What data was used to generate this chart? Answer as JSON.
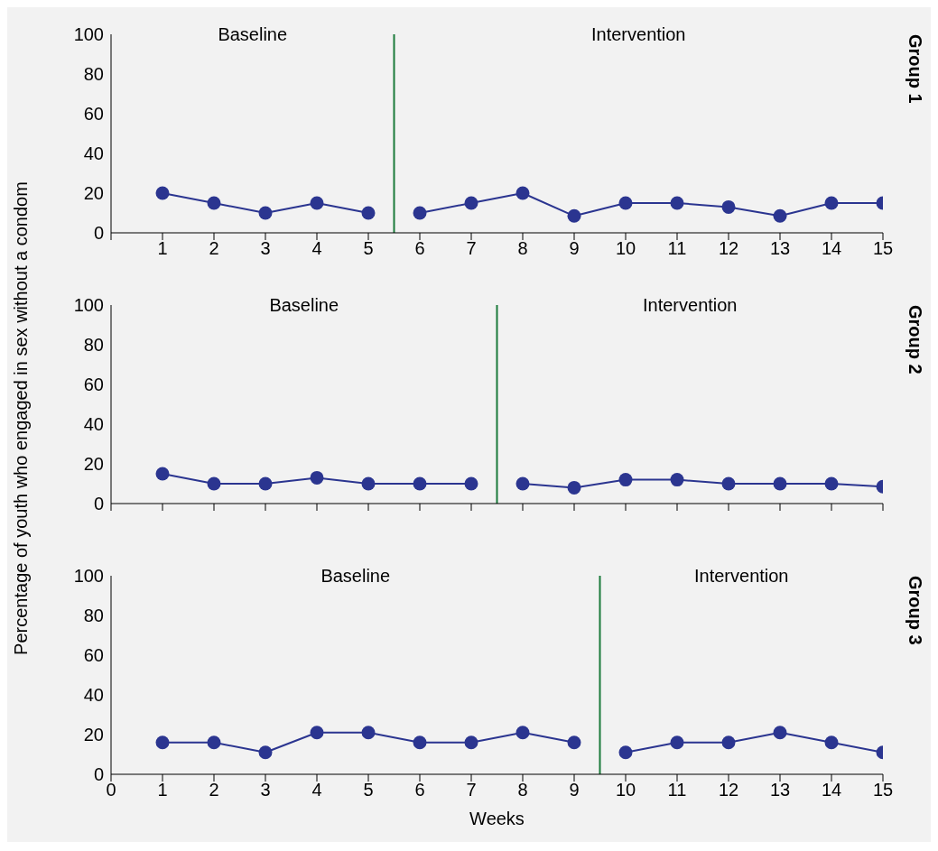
{
  "chart_data": [
    {
      "type": "line",
      "y2label": "Group 1",
      "annotations": [
        "Baseline",
        "Intervention"
      ],
      "series": [
        {
          "color": "#2b3590",
          "x": [
            1,
            2,
            3,
            4,
            5
          ],
          "values": [
            20,
            15,
            10,
            15,
            10
          ]
        },
        {
          "color": "#2b3590",
          "x": [
            6,
            7,
            8,
            9,
            10,
            11,
            12,
            13,
            14,
            15
          ],
          "values": [
            10,
            15,
            20,
            8.5,
            15,
            15,
            13,
            8.5,
            15,
            15
          ]
        }
      ],
      "xlim": [
        0,
        15
      ],
      "xticks": [
        {
          "value": 0,
          "label": null
        },
        1,
        2,
        3,
        4,
        5,
        6,
        7,
        8,
        9,
        10,
        11,
        12,
        13,
        14,
        15
      ],
      "ylim": [
        0,
        100
      ],
      "yticks": [
        0,
        20,
        40,
        60,
        80,
        100
      ],
      "grid": false,
      "legend": false,
      "marker": "circle",
      "line_style": "solid",
      "ref_lines": [
        {
          "axis": "x",
          "value": 5.5,
          "color": "#1a7a3a"
        }
      ]
    },
    {
      "type": "line",
      "y2label": "Group 2",
      "ylabel": "Percentage of youth who engaged in sex without a condom",
      "annotations": [
        "Baseline",
        "Intervention"
      ],
      "series": [
        {
          "color": "#2b3590",
          "x": [
            1,
            2,
            3,
            4,
            5,
            6,
            7
          ],
          "values": [
            15,
            10,
            10,
            13,
            10,
            10,
            10
          ]
        },
        {
          "color": "#2b3590",
          "x": [
            8,
            9,
            10,
            11,
            12,
            13,
            14,
            15
          ],
          "values": [
            10,
            8,
            12,
            12,
            10,
            10,
            10,
            8.5
          ]
        }
      ],
      "xlim": [
        0,
        15
      ],
      "xticks": [
        0,
        1,
        2,
        3,
        4,
        5,
        6,
        7,
        8,
        9,
        10,
        11,
        12,
        13,
        14,
        15
      ],
      "tick_labels": "y",
      "ylim": [
        0,
        100
      ],
      "yticks": [
        0,
        20,
        40,
        60,
        80,
        100
      ],
      "grid": false,
      "legend": false,
      "marker": "circle",
      "line_style": "solid",
      "ref_lines": [
        {
          "axis": "x",
          "value": 7.5,
          "color": "#1a7a3a"
        }
      ]
    },
    {
      "type": "line",
      "y2label": "Group 3",
      "xlabel": "Weeks",
      "annotations": [
        "Baseline",
        "Intervention"
      ],
      "series": [
        {
          "color": "#2b3590",
          "x": [
            1,
            2,
            3,
            4,
            5,
            6,
            7,
            8,
            9
          ],
          "values": [
            16,
            16,
            11,
            21,
            21,
            16,
            16,
            21,
            16
          ]
        },
        {
          "color": "#2b3590",
          "x": [
            10,
            11,
            12,
            13,
            14,
            15
          ],
          "values": [
            11,
            16,
            16,
            21,
            16,
            11
          ]
        }
      ],
      "xlim": [
        0,
        15
      ],
      "xticks": [
        0,
        1,
        2,
        3,
        4,
        5,
        6,
        7,
        8,
        9,
        10,
        11,
        12,
        13,
        14,
        15
      ],
      "ylim": [
        0,
        100
      ],
      "yticks": [
        0,
        20,
        40,
        60,
        80,
        100
      ],
      "grid": false,
      "legend": false,
      "marker": "circle",
      "line_style": "solid",
      "ref_lines": [
        {
          "axis": "x",
          "value": 9.5,
          "color": "#1a7a3a"
        }
      ]
    }
  ]
}
